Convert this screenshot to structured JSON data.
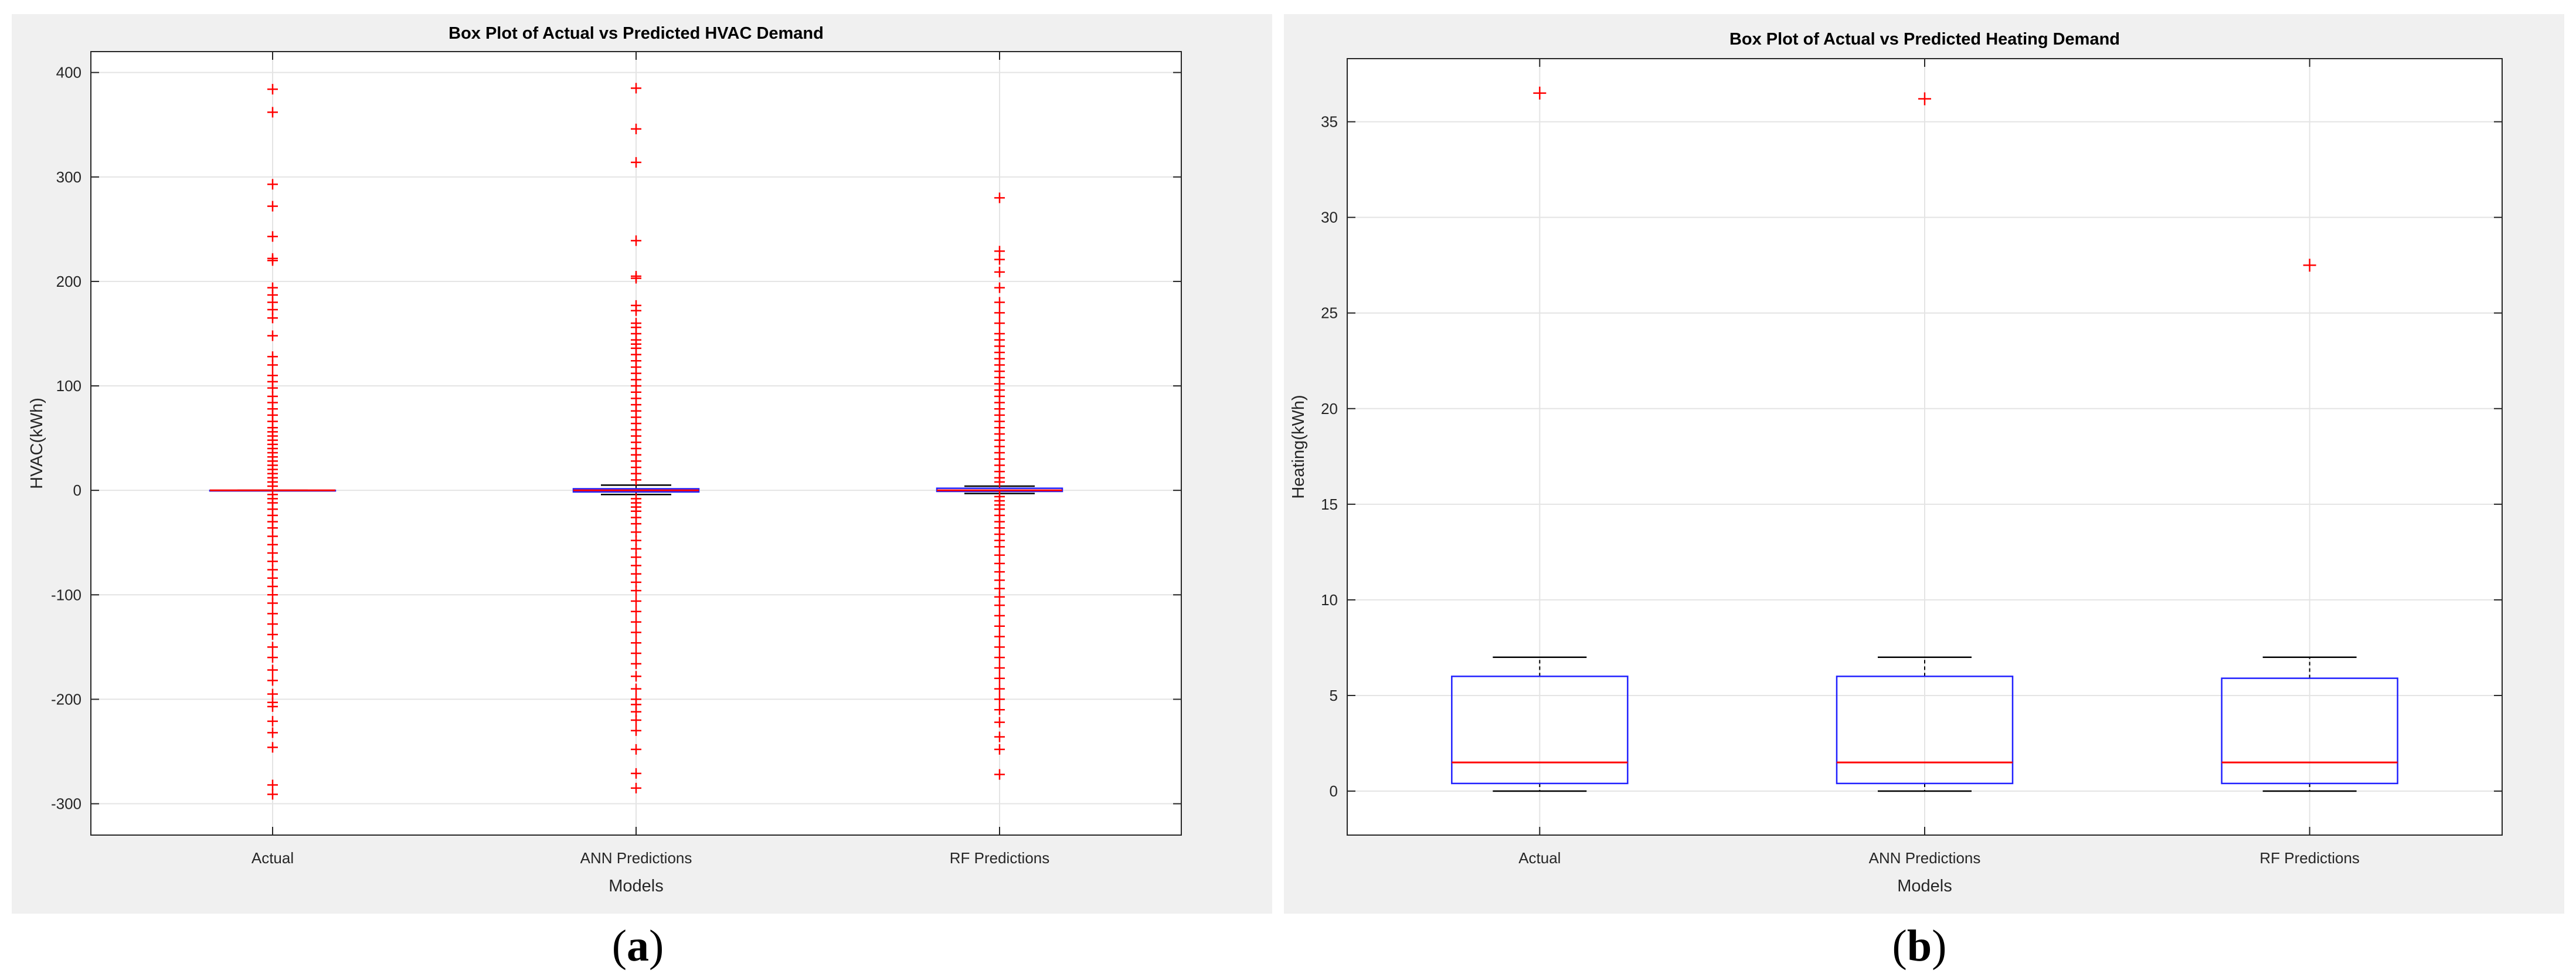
{
  "captions": {
    "a": "a",
    "b": "b"
  },
  "chart_data": [
    {
      "type": "box",
      "title": "Box Plot of Actual vs Predicted HVAC Demand",
      "xlabel": "Models",
      "ylabel": "HVAC(kWh)",
      "categories": [
        "Actual",
        "ANN Predictions",
        "RF Predictions"
      ],
      "ylim": [
        -330,
        420
      ],
      "yticks": [
        -300,
        -200,
        -100,
        0,
        100,
        200,
        300,
        400
      ],
      "grid": true,
      "boxes": [
        {
          "q1": 0,
          "median": 0,
          "q3": 0,
          "whisker_low": 0,
          "whisker_high": 0,
          "outliers": [
            384,
            362,
            293,
            272,
            243,
            222,
            220,
            194,
            187,
            180,
            173,
            165,
            148,
            128,
            120,
            110,
            104,
            98,
            90,
            84,
            78,
            72,
            66,
            60,
            56,
            52,
            48,
            44,
            40,
            36,
            32,
            28,
            24,
            20,
            16,
            12,
            8,
            4,
            -4,
            -8,
            -12,
            -18,
            -24,
            -30,
            -36,
            -44,
            -52,
            -60,
            -68,
            -76,
            -84,
            -92,
            -100,
            -108,
            -118,
            -128,
            -138,
            -150,
            -160,
            -172,
            -182,
            -195,
            -203,
            -207,
            -221,
            -232,
            -246,
            -282,
            -291
          ]
        },
        {
          "q1": -1.5,
          "median": 0,
          "q3": 1.5,
          "whisker_low": -4,
          "whisker_high": 5,
          "outliers": [
            385,
            346,
            314,
            239,
            205,
            203,
            177,
            172,
            160,
            156,
            150,
            144,
            140,
            136,
            130,
            124,
            118,
            112,
            106,
            100,
            94,
            88,
            82,
            76,
            70,
            64,
            58,
            52,
            46,
            40,
            34,
            28,
            22,
            16,
            10,
            -8,
            -12,
            -16,
            -20,
            -26,
            -32,
            -40,
            -48,
            -56,
            -64,
            -72,
            -80,
            -88,
            -96,
            -106,
            -116,
            -126,
            -136,
            -146,
            -156,
            -166,
            -178,
            -190,
            -200,
            -205,
            -212,
            -220,
            -230,
            -248,
            -271,
            -285
          ]
        },
        {
          "q1": -1,
          "median": 0,
          "q3": 2,
          "whisker_low": -3,
          "whisker_high": 4,
          "outliers": [
            280,
            229,
            221,
            209,
            194,
            180,
            170,
            160,
            150,
            144,
            138,
            132,
            126,
            120,
            114,
            108,
            102,
            96,
            90,
            84,
            78,
            72,
            66,
            60,
            54,
            48,
            42,
            36,
            30,
            24,
            18,
            12,
            8,
            -6,
            -10,
            -14,
            -18,
            -24,
            -30,
            -36,
            -42,
            -48,
            -54,
            -62,
            -70,
            -78,
            -86,
            -94,
            -102,
            -110,
            -120,
            -130,
            -140,
            -150,
            -160,
            -170,
            -180,
            -190,
            -200,
            -210,
            -222,
            -236,
            -248,
            -272
          ]
        }
      ]
    },
    {
      "type": "box",
      "title": "Box Plot of Actual vs Predicted Heating Demand",
      "xlabel": "Models",
      "ylabel": "Heating(kWh)",
      "categories": [
        "Actual",
        "ANN Predictions",
        "RF Predictions"
      ],
      "ylim": [
        -2.3,
        38.3
      ],
      "yticks": [
        0,
        5,
        10,
        15,
        20,
        25,
        30,
        35
      ],
      "grid": true,
      "boxes": [
        {
          "q1": 0.4,
          "median": 1.5,
          "q3": 6.0,
          "whisker_low": 0,
          "whisker_high": 7.0,
          "outliers": [
            36.5
          ]
        },
        {
          "q1": 0.4,
          "median": 1.5,
          "q3": 6.0,
          "whisker_low": 0,
          "whisker_high": 7.0,
          "outliers": [
            36.2
          ]
        },
        {
          "q1": 0.4,
          "median": 1.5,
          "q3": 5.9,
          "whisker_low": 0,
          "whisker_high": 7.0,
          "outliers": [
            27.5
          ]
        }
      ]
    }
  ]
}
